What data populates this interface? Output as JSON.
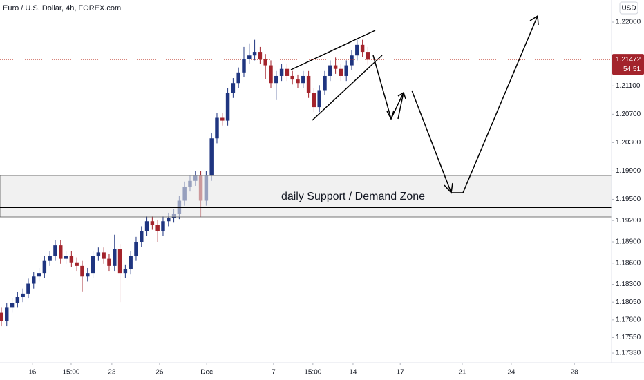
{
  "chart_data": {
    "type": "candlestick",
    "title": "Euro / U.S. Dollar, 4h, FOREX.com",
    "currency": "USD",
    "annotation": "daily Support / Demand Zone",
    "up_color": "#1f3580",
    "down_color": "#a3242c",
    "last_price": {
      "value": 1.21472,
      "label": "1.21472"
    },
    "countdown": "54:51",
    "x": [
      0,
      2,
      4,
      6,
      8,
      10,
      12,
      14,
      16,
      18,
      20,
      22,
      24,
      26,
      28,
      30,
      32,
      34,
      36,
      38,
      40,
      42,
      44,
      46,
      48,
      50,
      52,
      54,
      56,
      58,
      60,
      62,
      64,
      66,
      68,
      70,
      72,
      74,
      76,
      78,
      80,
      82,
      84,
      86,
      88,
      90,
      92,
      94,
      96,
      98,
      100,
      102,
      104,
      106,
      108,
      110,
      112,
      114,
      116,
      118,
      120,
      122,
      124,
      126,
      128,
      130,
      132,
      134,
      136
    ],
    "open": [
      1.179,
      1.1778,
      1.1797,
      1.1804,
      1.1812,
      1.1817,
      1.1831,
      1.1841,
      1.1846,
      1.1863,
      1.187,
      1.1885,
      1.1866,
      1.187,
      1.1861,
      1.1856,
      1.1841,
      1.1846,
      1.187,
      1.1875,
      1.1866,
      1.1856,
      1.188,
      1.1846,
      1.1851,
      1.187,
      1.189,
      1.1905,
      1.1919,
      1.1914,
      1.1905,
      1.1919,
      1.1924,
      1.1929,
      1.1948,
      1.1968,
      1.1976,
      1.1983,
      1.1948,
      1.1983,
      1.2036,
      1.2065,
      1.2061,
      1.21,
      1.2114,
      1.2129,
      1.2148,
      1.2153,
      1.2158,
      1.2148,
      1.2139,
      1.2114,
      1.2124,
      1.2134,
      1.2124,
      1.2119,
      1.2114,
      1.2124,
      1.21,
      1.208,
      1.2104,
      1.2124,
      1.2139,
      1.2134,
      1.2124,
      1.2139,
      1.2153,
      1.2168,
      1.2158
    ],
    "high": [
      1.1797,
      1.1804,
      1.1811,
      1.1819,
      1.1824,
      1.1838,
      1.1848,
      1.1853,
      1.187,
      1.1877,
      1.1892,
      1.1892,
      1.1877,
      1.1877,
      1.1868,
      1.1863,
      1.1853,
      1.1877,
      1.1882,
      1.1882,
      1.1873,
      1.19,
      1.1887,
      1.1858,
      1.1877,
      1.1897,
      1.1912,
      1.1926,
      1.1926,
      1.1921,
      1.1926,
      1.1931,
      1.1936,
      1.1955,
      1.1975,
      1.1983,
      1.199,
      1.199,
      1.199,
      1.2043,
      1.2072,
      1.2072,
      1.2107,
      1.2121,
      1.2136,
      1.2165,
      1.217,
      1.2175,
      1.2165,
      1.2155,
      1.2146,
      1.2131,
      1.2141,
      1.2141,
      1.2131,
      1.2126,
      1.2131,
      1.2131,
      1.2107,
      1.2111,
      1.2131,
      1.2146,
      1.215,
      1.2141,
      1.2146,
      1.216,
      1.2175,
      1.2175,
      1.2165
    ],
    "low": [
      1.1771,
      1.1771,
      1.179,
      1.1797,
      1.1805,
      1.181,
      1.1824,
      1.1834,
      1.1839,
      1.1856,
      1.1863,
      1.1859,
      1.1859,
      1.1854,
      1.1849,
      1.182,
      1.1834,
      1.1839,
      1.1863,
      1.1859,
      1.1849,
      1.1849,
      1.1805,
      1.1839,
      1.1844,
      1.1863,
      1.1883,
      1.1898,
      1.1907,
      1.189,
      1.1898,
      1.1912,
      1.1917,
      1.1922,
      1.1941,
      1.1961,
      1.1969,
      1.1925,
      1.1941,
      1.1976,
      1.2029,
      1.2054,
      1.2054,
      1.2093,
      1.2107,
      1.2122,
      1.2141,
      1.2146,
      1.2141,
      1.212,
      1.2107,
      1.209,
      1.2117,
      1.2117,
      1.2112,
      1.2107,
      1.2107,
      1.2093,
      1.2073,
      1.2073,
      1.2097,
      1.2117,
      1.2127,
      1.2117,
      1.2117,
      1.2132,
      1.2146,
      1.2151,
      1.214
    ],
    "close": [
      1.1778,
      1.1797,
      1.1804,
      1.1812,
      1.1817,
      1.1831,
      1.1841,
      1.1846,
      1.1863,
      1.187,
      1.1885,
      1.1866,
      1.187,
      1.1861,
      1.1856,
      1.1841,
      1.1846,
      1.187,
      1.1875,
      1.1866,
      1.1856,
      1.188,
      1.1846,
      1.1851,
      1.187,
      1.189,
      1.1905,
      1.1919,
      1.1914,
      1.1905,
      1.1919,
      1.1924,
      1.1929,
      1.1948,
      1.1968,
      1.1976,
      1.1983,
      1.1948,
      1.1983,
      1.2036,
      1.2065,
      1.2061,
      1.21,
      1.2114,
      1.2129,
      1.2148,
      1.2153,
      1.2158,
      1.2148,
      1.2139,
      1.2114,
      1.2124,
      1.2134,
      1.2124,
      1.2119,
      1.2114,
      1.2124,
      1.21,
      1.208,
      1.2104,
      1.2124,
      1.2139,
      1.2134,
      1.2124,
      1.2139,
      1.2153,
      1.2168,
      1.2158,
      1.2147
    ],
    "xlim": [
      -0.5,
      226.4
    ],
    "xticks": [
      {
        "value": 11.5,
        "label": "16"
      },
      {
        "value": 25.9,
        "label": "15:00"
      },
      {
        "value": 41,
        "label": "23"
      },
      {
        "value": 58.7,
        "label": "26"
      },
      {
        "value": 76.2,
        "label": "Dec"
      },
      {
        "value": 101,
        "label": "7"
      },
      {
        "value": 115.6,
        "label": "15:00"
      },
      {
        "value": 130.5,
        "label": "14"
      },
      {
        "value": 148,
        "label": "17"
      },
      {
        "value": 171,
        "label": "21"
      },
      {
        "value": 189.2,
        "label": "24"
      },
      {
        "value": 212.6,
        "label": "28"
      }
    ],
    "ylim": [
      1.17194,
      1.22312
    ],
    "yticks": [
      {
        "value": 1.22,
        "label": "1.22000"
      },
      {
        "value": 1.211,
        "label": "1.21100"
      },
      {
        "value": 1.207,
        "label": "1.20700"
      },
      {
        "value": 1.203,
        "label": "1.20300"
      },
      {
        "value": 1.199,
        "label": "1.19900"
      },
      {
        "value": 1.195,
        "label": "1.19500"
      },
      {
        "value": 1.192,
        "label": "1.19200"
      },
      {
        "value": 1.189,
        "label": "1.18900"
      },
      {
        "value": 1.186,
        "label": "1.18600"
      },
      {
        "value": 1.183,
        "label": "1.18300"
      },
      {
        "value": 1.1805,
        "label": "1.18050"
      },
      {
        "value": 1.178,
        "label": "1.17800"
      },
      {
        "value": 1.1755,
        "label": "1.17550"
      },
      {
        "value": 1.1733,
        "label": "1.17330"
      }
    ]
  }
}
